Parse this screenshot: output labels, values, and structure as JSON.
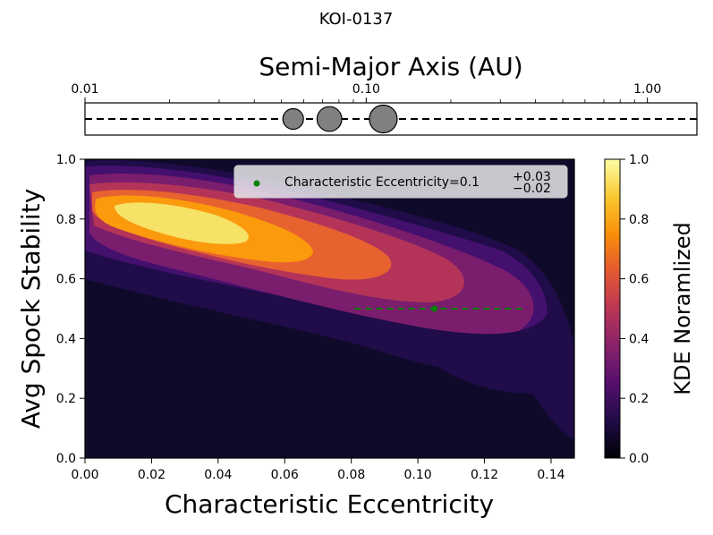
{
  "page_title": "KOI-0137",
  "chart_data": [
    {
      "type": "scatter",
      "title": "",
      "xlabel": "Semi-Major Axis (AU)",
      "xscale": "log",
      "xlim": [
        0.01,
        1.5
      ],
      "xtick_labels": [
        "0.01",
        "0.10",
        "1.00"
      ],
      "xticks": [
        0.01,
        0.1,
        1.0
      ],
      "points": [
        {
          "x": 0.055,
          "relative_size": 1.0
        },
        {
          "x": 0.074,
          "relative_size": 1.2
        },
        {
          "x": 0.115,
          "relative_size": 1.35
        }
      ],
      "line_style": "dashed",
      "point_color": "#808080"
    },
    {
      "type": "heatmap",
      "xlabel": "Characteristic Eccentricity",
      "ylabel": "Avg Spock Stability",
      "xlim": [
        0.0,
        0.147
      ],
      "ylim": [
        0.0,
        1.0
      ],
      "xticks": [
        0.0,
        0.02,
        0.04,
        0.06,
        0.08,
        0.1,
        0.12,
        0.14
      ],
      "xtick_labels": [
        "0.00",
        "0.02",
        "0.04",
        "0.06",
        "0.08",
        "0.10",
        "0.12",
        "0.14"
      ],
      "yticks": [
        0.0,
        0.2,
        0.4,
        0.6,
        0.8,
        1.0
      ],
      "ytick_labels": [
        "0.0",
        "0.2",
        "0.4",
        "0.6",
        "0.8",
        "1.0"
      ],
      "colorbar": {
        "label": "KDE Noramlized",
        "range": [
          0.0,
          1.0
        ],
        "ticks": [
          0.0,
          0.2,
          0.4,
          0.6,
          0.8,
          1.0
        ],
        "tick_labels": [
          "0.0",
          "0.2",
          "0.4",
          "0.6",
          "0.8",
          "1.0"
        ],
        "colormap": "inferno",
        "colors": [
          "#000004",
          "#1f0c48",
          "#550f6d",
          "#88226a",
          "#ba3655",
          "#e35933",
          "#f98e09",
          "#f9c932",
          "#fcffa4"
        ]
      },
      "kde_density": {
        "peak_x": 0.032,
        "peak_y": 0.79,
        "trend": "stability decreases as eccentricity increases",
        "extent_x": [
          0.0,
          0.147
        ],
        "extent_y": [
          0.08,
          0.98
        ]
      },
      "marker": {
        "x": 0.105,
        "y": 0.5,
        "x_err_minus": 0.02,
        "x_err_plus": 0.03,
        "color": "#008000",
        "style": "dashed errorbar"
      },
      "legend": {
        "position": "upper right",
        "label_prefix": "Characteristic Eccentricity=",
        "value": "0.1",
        "upper": "+0.03",
        "lower": "−0.02"
      }
    }
  ]
}
